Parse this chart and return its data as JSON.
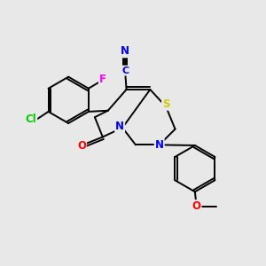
{
  "background_color": "#e8e8e8",
  "bond_color": "#000000",
  "atom_colors": {
    "F": "#ff00ff",
    "Cl": "#00cc00",
    "N": "#0000ff",
    "S": "#cccc00",
    "O": "#ff0000"
  },
  "figsize": [
    3.0,
    3.0
  ],
  "dpi": 100
}
